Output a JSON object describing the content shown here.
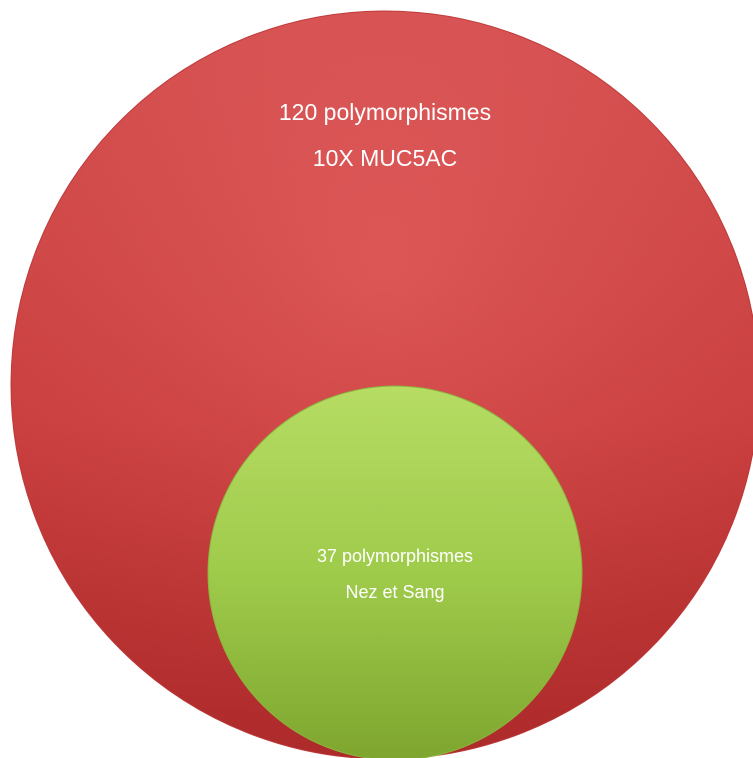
{
  "colors": {
    "outer_fill": "#d64545",
    "inner_fill": "#a6cf52",
    "text": "#ffffff"
  },
  "outer_circle": {
    "line1": "120 polymorphismes",
    "line2": "10X MUC5AC"
  },
  "inner_circle": {
    "line1": "37 polymorphismes",
    "line2": "Nez et Sang"
  }
}
